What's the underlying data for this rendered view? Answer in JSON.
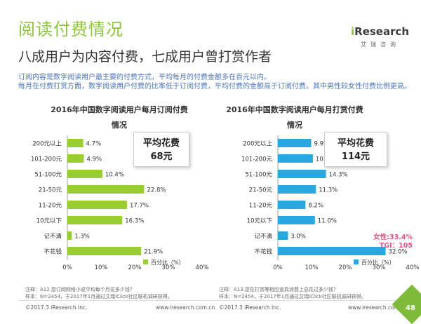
{
  "header": {
    "title": "阅读付费情况",
    "subtitle": "八成用户为内容付费，七成用户曾打赏作者",
    "desc1": "订阅内容是数字阅读用户最主要的付费方式，平均每月的付费金额多在百元以内。",
    "desc2": "每月在付费打赏方面，数字阅读用户付费的比率低于订阅付费，平均付费的金额高于订阅付费。其中男性较女性付费比例更高。"
  },
  "logo": {
    "text_i": "i",
    "text_rest": "Research",
    "cn": "艾瑞咨询"
  },
  "chart_data": [
    {
      "type": "bar",
      "orientation": "horizontal",
      "title_line1": "2016年中国数字阅读用户每月订阅付费",
      "title_line2": "情况",
      "categories": [
        "200元以上",
        "101-200元",
        "51-100元",
        "21-50元",
        "11-20元",
        "10元以下",
        "记不清",
        "不花钱"
      ],
      "values": [
        4.7,
        4.9,
        10.4,
        22.8,
        17.7,
        16.3,
        1.3,
        21.9
      ],
      "value_labels": [
        "4.7%",
        "4.9%",
        "10.4%",
        "22.8%",
        "17.7%",
        "16.3%",
        "1.3%",
        "21.9%"
      ],
      "xlim": [
        0,
        40
      ],
      "xticks": [
        "0%",
        "10%",
        "20%",
        "30%",
        "40%"
      ],
      "color": "#9acd32",
      "legend": "百分比（%）",
      "avg_line1": "平均花费",
      "avg_line2": "68元",
      "note1": "注释：A12.您订阅网络小说平均每个月花多少钱？",
      "note2": "样本：N=2454，于2017年1月通过艾瑞iClick社区联机调研获得。"
    },
    {
      "type": "bar",
      "orientation": "horizontal",
      "title_line1": "2016年中国数字阅读用户每月打赏付费",
      "title_line2": "情况",
      "categories": [
        "200元以上",
        "101-200元",
        "51-100元",
        "21-50元",
        "11-20元",
        "10元以下",
        "记不清",
        "不花钱"
      ],
      "values": [
        9.9,
        10.4,
        14.3,
        11.3,
        8.2,
        11.0,
        3.0,
        32.0
      ],
      "value_labels": [
        "9.9%",
        "10.4%",
        "14.3%",
        "11.3%",
        "8.2%",
        "11.0%",
        "3.0%",
        "32.0%"
      ],
      "xlim": [
        0,
        40
      ],
      "xticks": [
        "0%",
        "10%",
        "20%",
        "30%",
        "40%"
      ],
      "color": "#29a8e0",
      "legend": "百分比（%）",
      "avg_line1": "平均花费",
      "avg_line2": "114元",
      "note1": "注释：A13.您在打赏等相应道具消费上总花过多少钱？",
      "note2": "样本：N=2454，于2017年1月通过艾瑞iClick社区联机调研获得。",
      "annotation_line1": "女性:33.4%",
      "annotation_line2": "TGI：105"
    }
  ],
  "footer": {
    "copyright_left": "©2017.3 iResearch Inc.",
    "url_left": "www.iresearch.com.cn",
    "copyright_right": "©2017.3 iResearch Inc.",
    "url_right": "www.iresearch.com.cn",
    "page_number": "48"
  },
  "colors": {
    "accent": "#8cc63f",
    "desc": "#4a74b8",
    "annotation": "#e94e86"
  }
}
